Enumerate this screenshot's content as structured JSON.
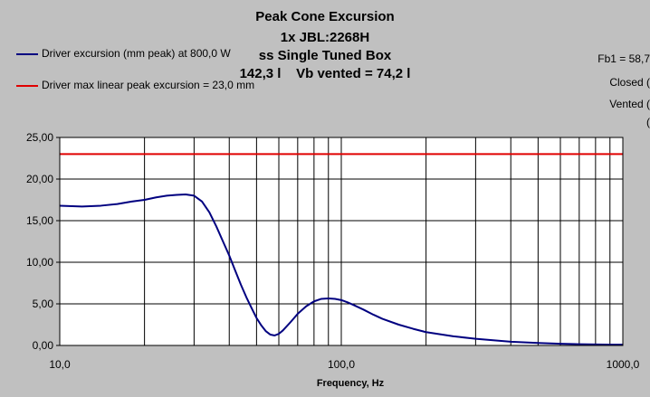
{
  "chart_data": {
    "type": "line",
    "title_lines": [
      "Peak Cone Excursion",
      "1x JBL:2268H",
      "ss Single Tuned Box",
      "142,3 l    Vb vented = 74,2 l"
    ],
    "side_notes": [
      "Fb1 = 58,7",
      "Closed (",
      "Vented (",
      "("
    ],
    "xlabel": "Frequency, Hz",
    "ylabel": "",
    "x_scale": "log",
    "xlim": [
      10,
      1000
    ],
    "ylim": [
      0,
      25
    ],
    "x_tick_labels": [
      "10,0",
      "100,0",
      "1000,0"
    ],
    "x_tick_values": [
      10,
      100,
      1000
    ],
    "y_tick_labels": [
      "0,00",
      "5,00",
      "10,00",
      "15,00",
      "20,00",
      "25,00"
    ],
    "y_tick_values": [
      0,
      5,
      10,
      15,
      20,
      25
    ],
    "grid": true,
    "legend_position": "top-left",
    "series": [
      {
        "name": "Driver excursion (mm peak) at 800,0 W",
        "color": "#000080",
        "x": [
          10,
          12,
          14,
          16,
          18,
          20,
          22,
          24,
          26,
          28,
          30,
          32,
          34,
          36,
          38,
          40,
          42,
          44,
          46,
          48,
          50,
          52,
          54,
          56,
          58,
          60,
          62,
          64,
          66,
          68,
          70,
          75,
          80,
          85,
          90,
          95,
          100,
          105,
          110,
          120,
          130,
          140,
          160,
          180,
          200,
          250,
          300,
          400,
          500,
          600,
          700,
          800,
          900,
          1000
        ],
        "y": [
          16.8,
          16.7,
          16.8,
          17.0,
          17.3,
          17.5,
          17.8,
          18.0,
          18.1,
          18.15,
          18.0,
          17.3,
          16.0,
          14.3,
          12.5,
          10.8,
          9.0,
          7.3,
          5.8,
          4.5,
          3.3,
          2.4,
          1.7,
          1.3,
          1.2,
          1.4,
          1.8,
          2.3,
          2.8,
          3.3,
          3.8,
          4.7,
          5.3,
          5.6,
          5.65,
          5.6,
          5.45,
          5.2,
          4.9,
          4.3,
          3.7,
          3.2,
          2.5,
          2.0,
          1.6,
          1.1,
          0.8,
          0.45,
          0.3,
          0.2,
          0.15,
          0.12,
          0.1,
          0.1
        ]
      },
      {
        "name": "Driver max linear peak excursion = 23,0 mm",
        "color": "#e00000",
        "x": [
          10,
          1000
        ],
        "y": [
          23.0,
          23.0
        ]
      }
    ]
  },
  "colors": {
    "background": "#c0c0c0",
    "plot_area": "#ffffff",
    "grid": "#000000"
  }
}
